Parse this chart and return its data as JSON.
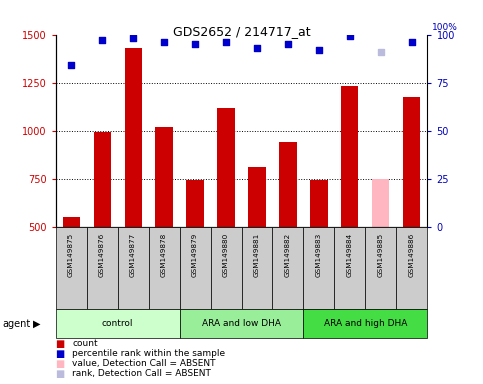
{
  "title": "GDS2652 / 214717_at",
  "samples": [
    "GSM149875",
    "GSM149876",
    "GSM149877",
    "GSM149878",
    "GSM149879",
    "GSM149880",
    "GSM149881",
    "GSM149882",
    "GSM149883",
    "GSM149884",
    "GSM149885",
    "GSM149886"
  ],
  "bar_values": [
    550,
    990,
    1430,
    1020,
    745,
    1120,
    810,
    940,
    740,
    1230,
    750,
    1175
  ],
  "bar_colors": [
    "#cc0000",
    "#cc0000",
    "#cc0000",
    "#cc0000",
    "#cc0000",
    "#cc0000",
    "#cc0000",
    "#cc0000",
    "#cc0000",
    "#cc0000",
    "#ffb6c1",
    "#cc0000"
  ],
  "scatter_pct": [
    84,
    97,
    98,
    96,
    95,
    96,
    93,
    95,
    92,
    99,
    91,
    96
  ],
  "scatter_colors": [
    "#0000cc",
    "#0000cc",
    "#0000cc",
    "#0000cc",
    "#0000cc",
    "#0000cc",
    "#0000cc",
    "#0000cc",
    "#0000cc",
    "#0000cc",
    "#bbbbdd",
    "#0000cc"
  ],
  "ylim_left": [
    500,
    1500
  ],
  "ylim_right": [
    0,
    100
  ],
  "yticks_left": [
    500,
    750,
    1000,
    1250,
    1500
  ],
  "yticks_right": [
    0,
    25,
    50,
    75,
    100
  ],
  "group_boundaries": [
    {
      "start": 0,
      "end": 3,
      "label": "control",
      "color": "#ccffcc"
    },
    {
      "start": 4,
      "end": 7,
      "label": "ARA and low DHA",
      "color": "#99ee99"
    },
    {
      "start": 8,
      "end": 11,
      "label": "ARA and high DHA",
      "color": "#44dd44"
    }
  ],
  "legend_items": [
    {
      "label": "count",
      "color": "#cc0000"
    },
    {
      "label": "percentile rank within the sample",
      "color": "#0000cc"
    },
    {
      "label": "value, Detection Call = ABSENT",
      "color": "#ffb6c1"
    },
    {
      "label": "rank, Detection Call = ABSENT",
      "color": "#bbbbdd"
    }
  ],
  "left_tick_color": "#cc0000",
  "right_tick_color": "#0000bb",
  "bar_width": 0.55,
  "background_color": "#ffffff",
  "sample_box_color": "#cccccc"
}
